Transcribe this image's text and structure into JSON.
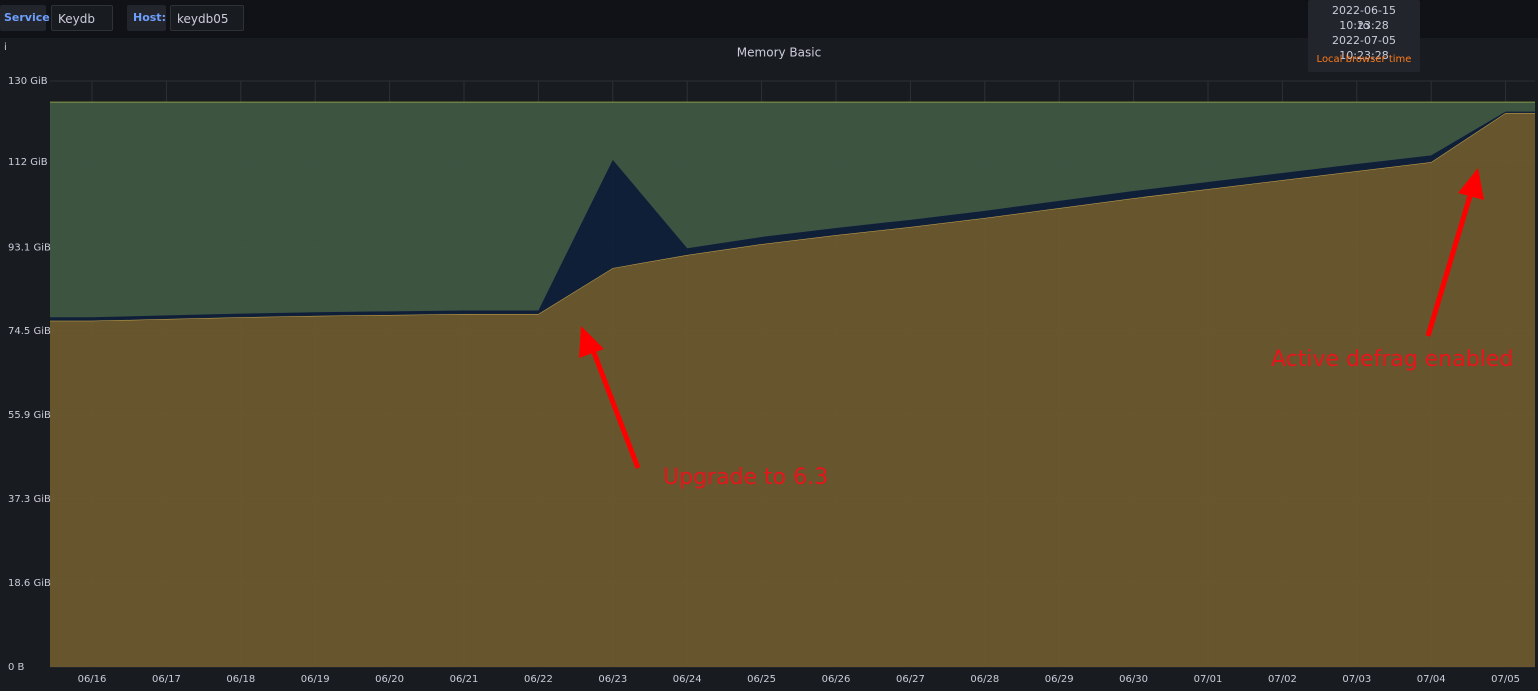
{
  "toolbar": {
    "service_label": "Service",
    "service_value": "Keydb",
    "host_label": "Host:",
    "host_value": "keydb05"
  },
  "time_tooltip": {
    "from": "2022-06-15 10:23:28",
    "separator": "to",
    "until": "2022-07-05 10:23:28",
    "note": "Local browser time"
  },
  "panel_info": "i",
  "chart_data": {
    "type": "area",
    "stacked": true,
    "title": "Memory Basic",
    "categories": [
      null,
      "06/16",
      "06/17",
      "06/18",
      "06/19",
      "06/20",
      "06/21",
      "06/22",
      "06/23",
      "06/24",
      "06/25",
      "06/26",
      "06/27",
      "06/28",
      "06/29",
      "06/30",
      "07/01",
      "07/02",
      "07/03",
      "07/04",
      "07/05",
      null
    ],
    "series": [
      {
        "color": "#6b5a2e",
        "line_color": "#c9a54c",
        "values": [
          76.8,
          76.8,
          77.2,
          77.6,
          77.9,
          78.1,
          78.3,
          78.3,
          88.5,
          91.4,
          93.8,
          95.8,
          97.6,
          99.6,
          101.8,
          104.0,
          106.0,
          108.0,
          110.0,
          112.0,
          122.9,
          122.9
        ]
      },
      {
        "color": "#10203a",
        "line_color": "#10203a",
        "values": [
          0.8,
          0.8,
          0.8,
          0.8,
          0.8,
          0.8,
          0.8,
          0.8,
          24.0,
          1.5,
          1.6,
          1.6,
          1.6,
          1.6,
          1.6,
          1.6,
          1.6,
          1.6,
          1.6,
          1.5,
          0.3,
          0.3
        ]
      },
      {
        "color": "#3f5743",
        "line_color": "#8a9a4a",
        "values": [
          47.7,
          47.7,
          47.3,
          46.9,
          46.6,
          46.4,
          46.2,
          46.2,
          12.8,
          32.4,
          29.9,
          27.9,
          26.1,
          24.1,
          21.9,
          19.7,
          17.7,
          15.7,
          13.7,
          11.8,
          2.1,
          2.1
        ]
      }
    ],
    "ylim": [
      0,
      130
    ],
    "yticks": [
      {
        "value": 0,
        "label": "0 B"
      },
      {
        "value": 18.6,
        "label": "18.6 GiB"
      },
      {
        "value": 37.3,
        "label": "37.3 GiB"
      },
      {
        "value": 55.9,
        "label": "55.9 GiB"
      },
      {
        "value": 74.5,
        "label": "74.5 GiB"
      },
      {
        "value": 93.1,
        "label": "93.1 GiB"
      },
      {
        "value": 112,
        "label": "112 GiB"
      },
      {
        "value": 130,
        "label": "130 GiB"
      }
    ],
    "grid": true,
    "annotations": [
      "Upgrade to 6.3",
      "Active defrag enabled"
    ]
  }
}
